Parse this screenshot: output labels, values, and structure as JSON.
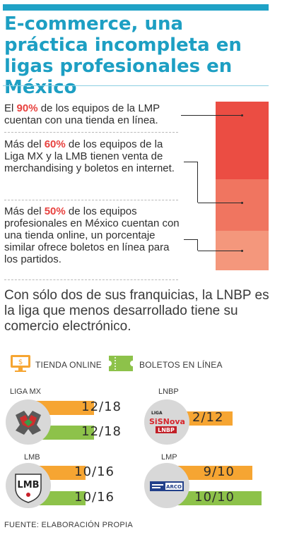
{
  "title": "E-commerce, una práctica incompleta en ligas profesionales en México",
  "stats": [
    {
      "pre": "El ",
      "highlight": "90%",
      "post": " de los equipos de la LMP cuentan con una tienda en línea."
    },
    {
      "pre": "Más del ",
      "highlight": "60%",
      "post": " de los equipos de la Liga MX y la LMB tienen venta de merchandising y boletos en internet."
    },
    {
      "pre": "Más del ",
      "highlight": "50%",
      "post": " de los equipos profesionales en México cuentan con una tienda online, un porcentaje similar ofrece boletos en línea para los partidos."
    }
  ],
  "segment_colors": [
    "#eb4d43",
    "#f07560",
    "#f4977c"
  ],
  "lnbp_note": "Con sólo dos de sus franquicias, la LNBP es la liga que menos desarrollado tiene su comercio electrónico.",
  "legend": {
    "store_label": "TIENDA ONLINE",
    "store_icon": "store-monitor-icon",
    "tickets_label": "BOLETOS EN LÍNEA",
    "tickets_icon": "ticket-icon"
  },
  "leagues": [
    {
      "name": "LIGA MX",
      "logo_icon": "liga-mx-logo",
      "store": "12/18",
      "tickets": "12/18",
      "store_fraction": 0.667,
      "tickets_fraction": 0.667
    },
    {
      "name": "LNBP",
      "logo_icon": "lnbp-logo",
      "logo_text_top": "LIGA",
      "logo_text_mid": "SiSNova",
      "logo_text_bottom": "LNBP",
      "store": "2/12",
      "tickets": "",
      "store_fraction": 0.167,
      "tickets_fraction": 0
    },
    {
      "name": "LMB",
      "logo_icon": "lmb-logo",
      "logo_text": "LMB",
      "store": "10/16",
      "tickets": "10/16",
      "store_fraction": 0.625,
      "tickets_fraction": 0.625
    },
    {
      "name": "LMP",
      "logo_icon": "lmp-logo",
      "logo_text": "ARCO",
      "store": "9/10",
      "tickets": "10/10",
      "store_fraction": 0.9,
      "tickets_fraction": 1.0
    }
  ],
  "colors": {
    "accent": "#1d9fc3",
    "store": "#f6a532",
    "tickets": "#8dc24a",
    "highlight": "#e8423f"
  },
  "source": "FUENTE: ELABORACIÓN PROPIA"
}
